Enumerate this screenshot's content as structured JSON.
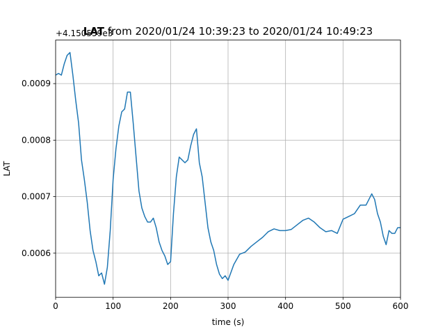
{
  "chart_data": {
    "type": "line",
    "title": {
      "bold": "LAT",
      "rest": " from 2020/01/24 10:39:23 to 2020/01/24 10:49:23"
    },
    "xlabel": "time (s)",
    "ylabel": "LAT",
    "y_offset_label": "+4.150559e3",
    "xlim": [
      0,
      600
    ],
    "ylim": [
      0.000522,
      0.000977
    ],
    "x_ticks": [
      0,
      100,
      200,
      300,
      400,
      500,
      600
    ],
    "x_tick_labels": [
      "0",
      "100",
      "200",
      "300",
      "400",
      "500",
      "600"
    ],
    "y_ticks": [
      0.0006,
      0.0007,
      0.0008,
      0.0009
    ],
    "y_tick_labels": [
      "0.0006",
      "0.0007",
      "0.0008",
      "0.0009"
    ],
    "grid": true,
    "series": [
      {
        "color": "#1f77b4",
        "x": [
          0,
          5,
          10,
          15,
          20,
          25,
          30,
          35,
          40,
          45,
          50,
          55,
          60,
          65,
          70,
          75,
          80,
          85,
          90,
          95,
          100,
          105,
          110,
          115,
          120,
          125,
          130,
          135,
          140,
          145,
          150,
          155,
          160,
          165,
          170,
          175,
          180,
          185,
          190,
          195,
          200,
          205,
          210,
          215,
          220,
          225,
          230,
          235,
          240,
          245,
          250,
          255,
          260,
          265,
          270,
          275,
          280,
          285,
          290,
          295,
          300,
          310,
          320,
          330,
          340,
          350,
          360,
          370,
          380,
          390,
          400,
          410,
          420,
          430,
          440,
          450,
          460,
          470,
          480,
          490,
          500,
          510,
          520,
          530,
          540,
          550,
          555,
          560,
          565,
          570,
          575,
          580,
          585,
          590,
          595,
          600
        ],
        "y": [
          0.000915,
          0.000918,
          0.000915,
          0.000935,
          0.00095,
          0.000955,
          0.000915,
          0.00087,
          0.00083,
          0.000765,
          0.00073,
          0.00069,
          0.00064,
          0.000605,
          0.000585,
          0.00056,
          0.000565,
          0.000545,
          0.000575,
          0.00064,
          0.00073,
          0.000785,
          0.000825,
          0.00085,
          0.000855,
          0.000885,
          0.000885,
          0.00083,
          0.00077,
          0.00071,
          0.00068,
          0.000665,
          0.000655,
          0.000655,
          0.000662,
          0.000645,
          0.00062,
          0.000605,
          0.000595,
          0.00058,
          0.000585,
          0.00067,
          0.000735,
          0.00077,
          0.000765,
          0.00076,
          0.000765,
          0.00079,
          0.00081,
          0.00082,
          0.00076,
          0.000735,
          0.00069,
          0.000645,
          0.00062,
          0.000605,
          0.00058,
          0.000563,
          0.000555,
          0.00056,
          0.000552,
          0.00058,
          0.000598,
          0.000602,
          0.000612,
          0.00062,
          0.000628,
          0.000638,
          0.000643,
          0.00064,
          0.00064,
          0.000642,
          0.00065,
          0.000658,
          0.000662,
          0.000655,
          0.000645,
          0.000638,
          0.00064,
          0.000635,
          0.00066,
          0.000665,
          0.00067,
          0.000685,
          0.000685,
          0.000705,
          0.000695,
          0.00067,
          0.000655,
          0.00063,
          0.000615,
          0.00064,
          0.000635,
          0.000635,
          0.000645,
          0.000645
        ]
      }
    ]
  }
}
